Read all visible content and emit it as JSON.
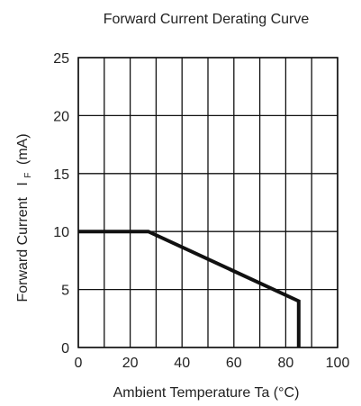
{
  "chart_data": {
    "type": "line",
    "title": "Forward Current Derating Curve",
    "xlabel": "Ambient Temperature Ta (°C)",
    "ylabel": {
      "main": "Forward Current",
      "symbol": "I",
      "subscript": "F",
      "unit": "(mA)"
    },
    "xlim": [
      0,
      100
    ],
    "ylim": [
      0,
      25
    ],
    "x_ticks": [
      0,
      20,
      40,
      60,
      80,
      100
    ],
    "y_ticks": [
      0,
      5,
      10,
      15,
      20,
      25
    ],
    "x_grid": [
      0,
      10,
      20,
      30,
      40,
      50,
      60,
      70,
      80,
      90,
      100
    ],
    "y_grid": [
      0,
      5,
      10,
      15,
      20,
      25
    ],
    "grid": true,
    "series": [
      {
        "color": "#111111",
        "x": [
          0,
          27,
          85,
          85
        ],
        "y": [
          10,
          10,
          4,
          0
        ]
      }
    ]
  }
}
